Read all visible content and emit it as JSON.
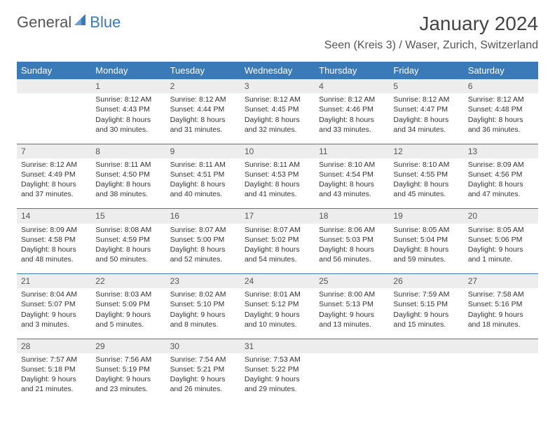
{
  "logo": {
    "part1": "General",
    "part2": "Blue"
  },
  "title": "January 2024",
  "location": "Seen (Kreis 3) / Waser, Zurich, Switzerland",
  "colors": {
    "accent": "#3a7ab8",
    "header_bg": "#3a7ab8",
    "daynum_bg": "#ededed",
    "text": "#333333",
    "bg": "#ffffff"
  },
  "day_headers": [
    "Sunday",
    "Monday",
    "Tuesday",
    "Wednesday",
    "Thursday",
    "Friday",
    "Saturday"
  ],
  "weeks": [
    [
      {
        "n": "",
        "lines": []
      },
      {
        "n": "1",
        "lines": [
          "Sunrise: 8:12 AM",
          "Sunset: 4:43 PM",
          "Daylight: 8 hours and 30 minutes."
        ]
      },
      {
        "n": "2",
        "lines": [
          "Sunrise: 8:12 AM",
          "Sunset: 4:44 PM",
          "Daylight: 8 hours and 31 minutes."
        ]
      },
      {
        "n": "3",
        "lines": [
          "Sunrise: 8:12 AM",
          "Sunset: 4:45 PM",
          "Daylight: 8 hours and 32 minutes."
        ]
      },
      {
        "n": "4",
        "lines": [
          "Sunrise: 8:12 AM",
          "Sunset: 4:46 PM",
          "Daylight: 8 hours and 33 minutes."
        ]
      },
      {
        "n": "5",
        "lines": [
          "Sunrise: 8:12 AM",
          "Sunset: 4:47 PM",
          "Daylight: 8 hours and 34 minutes."
        ]
      },
      {
        "n": "6",
        "lines": [
          "Sunrise: 8:12 AM",
          "Sunset: 4:48 PM",
          "Daylight: 8 hours and 36 minutes."
        ]
      }
    ],
    [
      {
        "n": "7",
        "lines": [
          "Sunrise: 8:12 AM",
          "Sunset: 4:49 PM",
          "Daylight: 8 hours and 37 minutes."
        ]
      },
      {
        "n": "8",
        "lines": [
          "Sunrise: 8:11 AM",
          "Sunset: 4:50 PM",
          "Daylight: 8 hours and 38 minutes."
        ]
      },
      {
        "n": "9",
        "lines": [
          "Sunrise: 8:11 AM",
          "Sunset: 4:51 PM",
          "Daylight: 8 hours and 40 minutes."
        ]
      },
      {
        "n": "10",
        "lines": [
          "Sunrise: 8:11 AM",
          "Sunset: 4:53 PM",
          "Daylight: 8 hours and 41 minutes."
        ]
      },
      {
        "n": "11",
        "lines": [
          "Sunrise: 8:10 AM",
          "Sunset: 4:54 PM",
          "Daylight: 8 hours and 43 minutes."
        ]
      },
      {
        "n": "12",
        "lines": [
          "Sunrise: 8:10 AM",
          "Sunset: 4:55 PM",
          "Daylight: 8 hours and 45 minutes."
        ]
      },
      {
        "n": "13",
        "lines": [
          "Sunrise: 8:09 AM",
          "Sunset: 4:56 PM",
          "Daylight: 8 hours and 47 minutes."
        ]
      }
    ],
    [
      {
        "n": "14",
        "lines": [
          "Sunrise: 8:09 AM",
          "Sunset: 4:58 PM",
          "Daylight: 8 hours and 48 minutes."
        ]
      },
      {
        "n": "15",
        "lines": [
          "Sunrise: 8:08 AM",
          "Sunset: 4:59 PM",
          "Daylight: 8 hours and 50 minutes."
        ]
      },
      {
        "n": "16",
        "lines": [
          "Sunrise: 8:07 AM",
          "Sunset: 5:00 PM",
          "Daylight: 8 hours and 52 minutes."
        ]
      },
      {
        "n": "17",
        "lines": [
          "Sunrise: 8:07 AM",
          "Sunset: 5:02 PM",
          "Daylight: 8 hours and 54 minutes."
        ]
      },
      {
        "n": "18",
        "lines": [
          "Sunrise: 8:06 AM",
          "Sunset: 5:03 PM",
          "Daylight: 8 hours and 56 minutes."
        ]
      },
      {
        "n": "19",
        "lines": [
          "Sunrise: 8:05 AM",
          "Sunset: 5:04 PM",
          "Daylight: 8 hours and 59 minutes."
        ]
      },
      {
        "n": "20",
        "lines": [
          "Sunrise: 8:05 AM",
          "Sunset: 5:06 PM",
          "Daylight: 9 hours and 1 minute."
        ]
      }
    ],
    [
      {
        "n": "21",
        "lines": [
          "Sunrise: 8:04 AM",
          "Sunset: 5:07 PM",
          "Daylight: 9 hours and 3 minutes."
        ]
      },
      {
        "n": "22",
        "lines": [
          "Sunrise: 8:03 AM",
          "Sunset: 5:09 PM",
          "Daylight: 9 hours and 5 minutes."
        ]
      },
      {
        "n": "23",
        "lines": [
          "Sunrise: 8:02 AM",
          "Sunset: 5:10 PM",
          "Daylight: 9 hours and 8 minutes."
        ]
      },
      {
        "n": "24",
        "lines": [
          "Sunrise: 8:01 AM",
          "Sunset: 5:12 PM",
          "Daylight: 9 hours and 10 minutes."
        ]
      },
      {
        "n": "25",
        "lines": [
          "Sunrise: 8:00 AM",
          "Sunset: 5:13 PM",
          "Daylight: 9 hours and 13 minutes."
        ]
      },
      {
        "n": "26",
        "lines": [
          "Sunrise: 7:59 AM",
          "Sunset: 5:15 PM",
          "Daylight: 9 hours and 15 minutes."
        ]
      },
      {
        "n": "27",
        "lines": [
          "Sunrise: 7:58 AM",
          "Sunset: 5:16 PM",
          "Daylight: 9 hours and 18 minutes."
        ]
      }
    ],
    [
      {
        "n": "28",
        "lines": [
          "Sunrise: 7:57 AM",
          "Sunset: 5:18 PM",
          "Daylight: 9 hours and 21 minutes."
        ]
      },
      {
        "n": "29",
        "lines": [
          "Sunrise: 7:56 AM",
          "Sunset: 5:19 PM",
          "Daylight: 9 hours and 23 minutes."
        ]
      },
      {
        "n": "30",
        "lines": [
          "Sunrise: 7:54 AM",
          "Sunset: 5:21 PM",
          "Daylight: 9 hours and 26 minutes."
        ]
      },
      {
        "n": "31",
        "lines": [
          "Sunrise: 7:53 AM",
          "Sunset: 5:22 PM",
          "Daylight: 9 hours and 29 minutes."
        ]
      },
      {
        "n": "",
        "lines": []
      },
      {
        "n": "",
        "lines": []
      },
      {
        "n": "",
        "lines": []
      }
    ]
  ]
}
